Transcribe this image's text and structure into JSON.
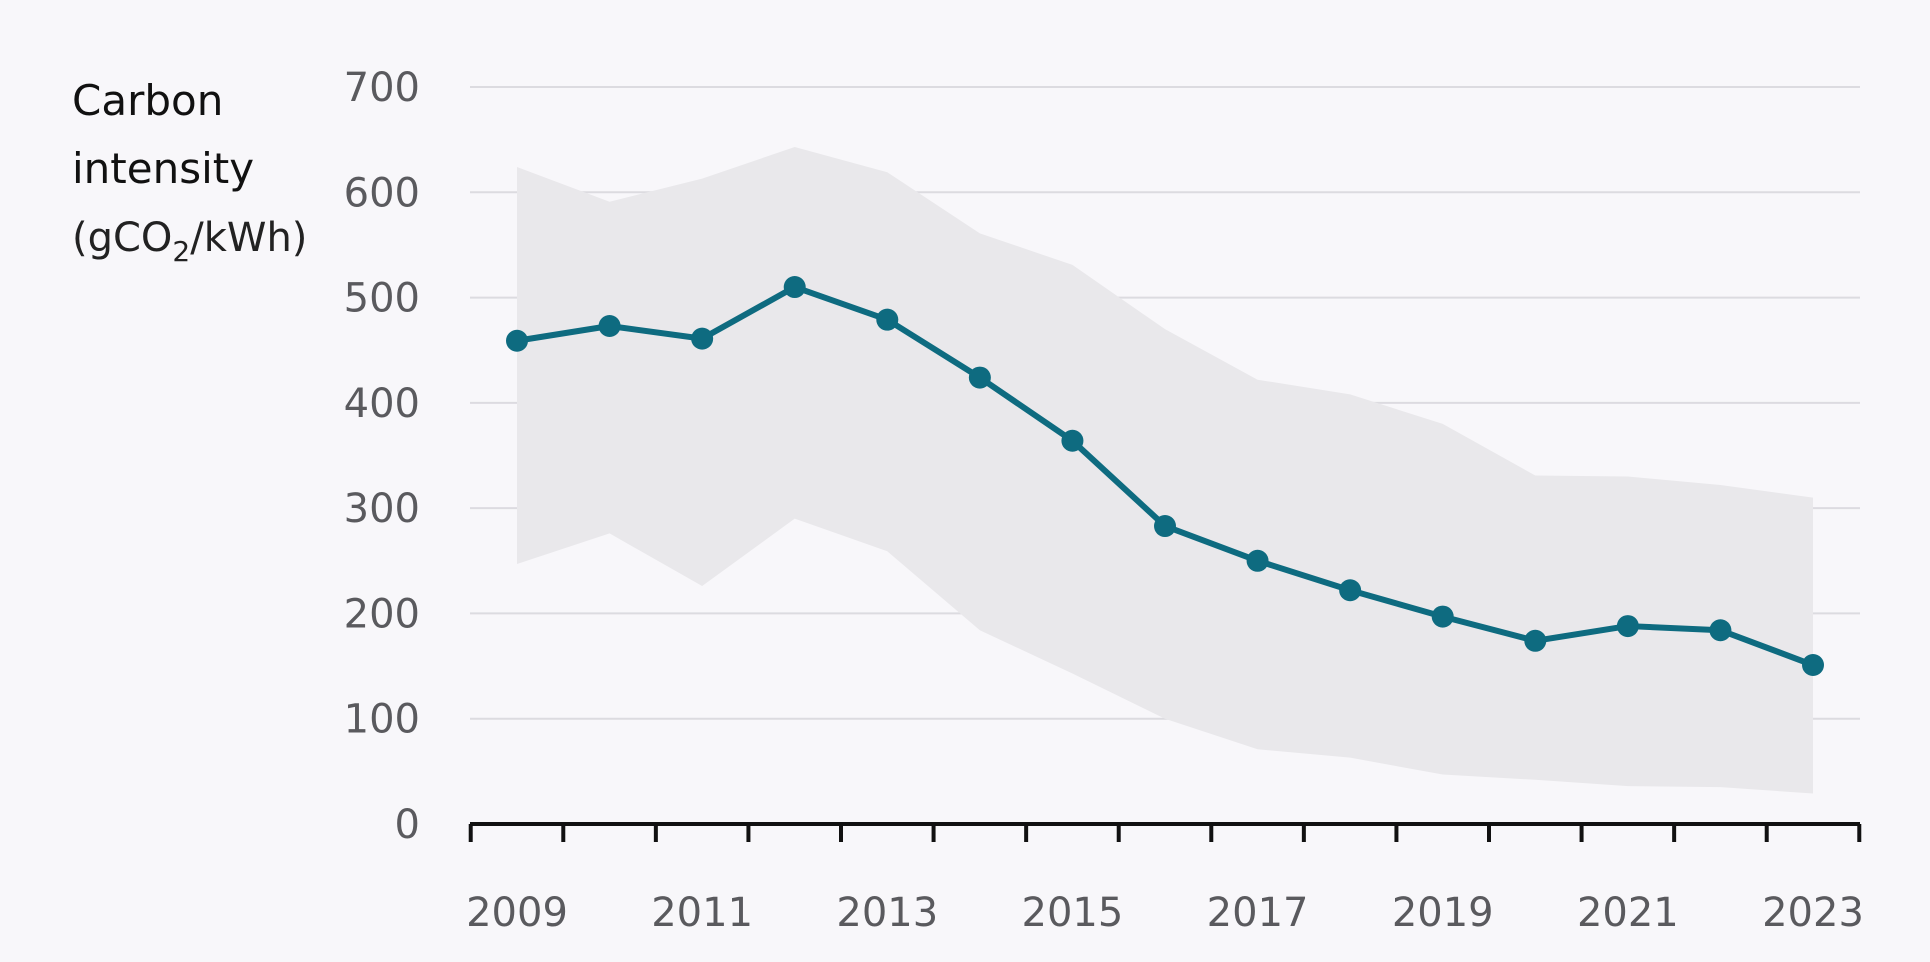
{
  "chart_data": {
    "type": "line",
    "ylabel": {
      "line1": "Carbon",
      "line2": "intensity",
      "unit_prefix": "(gCO",
      "unit_subscript": "2",
      "unit_suffix": "/kWh)"
    },
    "x": [
      2009,
      2010,
      2011,
      2012,
      2013,
      2014,
      2015,
      2016,
      2017,
      2018,
      2019,
      2020,
      2021,
      2022,
      2023
    ],
    "series": [
      {
        "values": [
          459,
          473,
          461,
          510,
          479,
          424,
          364,
          283,
          250,
          222,
          197,
          174,
          188,
          184,
          151
        ],
        "color": "#0e6b80"
      }
    ],
    "band": {
      "upper": [
        624,
        591,
        613,
        643,
        619,
        561,
        531,
        470,
        422,
        408,
        380,
        331,
        330,
        322,
        310
      ],
      "lower": [
        247,
        276,
        226,
        290,
        259,
        184,
        143,
        100,
        71,
        63,
        47,
        42,
        36,
        35,
        29
      ],
      "color": "#e9e8eb"
    },
    "ylim": [
      0,
      700
    ],
    "yticks": [
      "0",
      "100",
      "200",
      "300",
      "400",
      "500",
      "600",
      "700"
    ],
    "xtick_labels": [
      "2009",
      "2011",
      "2013",
      "2015",
      "2017",
      "2019",
      "2021",
      "2023"
    ],
    "grid": true,
    "colors": {
      "grid": "#dcdbe0",
      "axis": "#111111",
      "marker": "#0e6b80"
    }
  }
}
